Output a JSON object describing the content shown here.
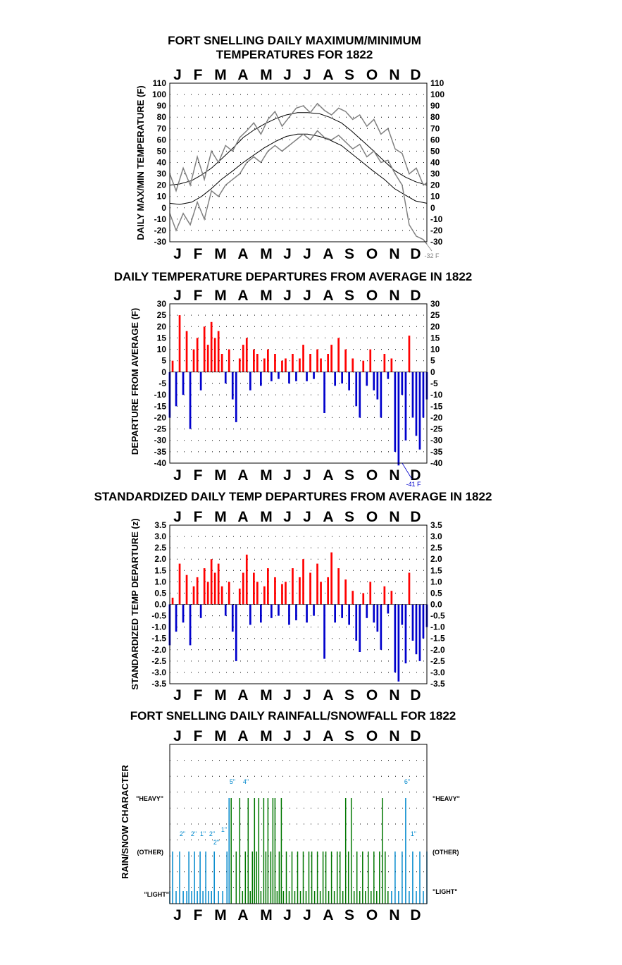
{
  "months": [
    "J",
    "F",
    "M",
    "A",
    "M",
    "J",
    "J",
    "A",
    "S",
    "O",
    "N",
    "D"
  ],
  "colors": {
    "observed": "#808080",
    "normal": "#000000",
    "warm": "#ff0000",
    "cold": "#0000cc",
    "rain": "#007700",
    "snow": "#0088cc",
    "grid": "#000000"
  },
  "chart_data": [
    {
      "type": "line",
      "title_line1": "FORT SNELLING DAILY MAXIMUM/MINIMUM",
      "title_line2": "TEMPERATURES FOR 1822",
      "ylabel": "DAILY MAX/MIN TEMPERATURE (F)",
      "ylim": [
        -30,
        110
      ],
      "yticks": [
        -30,
        -20,
        -10,
        0,
        10,
        20,
        30,
        40,
        50,
        60,
        70,
        80,
        90,
        100,
        110
      ],
      "annotation": "-32 F",
      "series": [
        {
          "role": "normal-max",
          "x": [
            1,
            15,
            32,
            46,
            60,
            74,
            91,
            105,
            121,
            135,
            152,
            166,
            182,
            196,
            213,
            227,
            244,
            258,
            274,
            288,
            305,
            319,
            335,
            349,
            365
          ],
          "values": [
            20,
            21,
            24,
            29,
            35,
            43,
            53,
            62,
            69,
            74,
            79,
            82,
            84,
            84,
            83,
            80,
            75,
            68,
            59,
            51,
            41,
            33,
            27,
            23,
            20
          ]
        },
        {
          "role": "normal-min",
          "x": [
            1,
            15,
            32,
            46,
            60,
            74,
            91,
            105,
            121,
            135,
            152,
            166,
            182,
            196,
            213,
            227,
            244,
            258,
            274,
            288,
            305,
            319,
            335,
            349,
            365
          ],
          "values": [
            4,
            3,
            5,
            10,
            17,
            25,
            33,
            40,
            47,
            53,
            59,
            63,
            65,
            65,
            63,
            60,
            55,
            48,
            40,
            33,
            25,
            17,
            11,
            6,
            4
          ]
        },
        {
          "role": "observed-max",
          "x": [
            1,
            10,
            20,
            30,
            40,
            50,
            60,
            70,
            80,
            90,
            100,
            110,
            120,
            130,
            140,
            150,
            160,
            170,
            180,
            190,
            200,
            210,
            220,
            230,
            240,
            250,
            260,
            270,
            280,
            290,
            300,
            310,
            320,
            330,
            340,
            350,
            360,
            365
          ],
          "values": [
            30,
            15,
            35,
            20,
            45,
            25,
            50,
            40,
            55,
            50,
            62,
            68,
            75,
            65,
            78,
            85,
            72,
            80,
            88,
            90,
            84,
            92,
            86,
            82,
            88,
            85,
            78,
            82,
            72,
            78,
            65,
            70,
            52,
            48,
            30,
            35,
            20,
            22
          ]
        },
        {
          "role": "observed-min",
          "x": [
            1,
            10,
            20,
            30,
            40,
            50,
            60,
            70,
            80,
            90,
            100,
            110,
            120,
            130,
            140,
            150,
            160,
            170,
            180,
            190,
            200,
            210,
            220,
            230,
            240,
            250,
            260,
            270,
            280,
            290,
            300,
            310,
            320,
            330,
            340,
            350,
            360,
            365
          ],
          "values": [
            -5,
            -20,
            -5,
            -15,
            5,
            -10,
            15,
            10,
            20,
            25,
            30,
            40,
            45,
            40,
            50,
            55,
            50,
            55,
            60,
            65,
            60,
            68,
            62,
            60,
            64,
            58,
            52,
            56,
            45,
            50,
            40,
            42,
            30,
            20,
            -15,
            -25,
            -28,
            -32
          ]
        }
      ]
    },
    {
      "type": "bar",
      "title": "DAILY TEMPERATURE DEPARTURES FROM AVERAGE IN 1822",
      "ylabel": "DEPARTURE FROM AVERAGE (F)",
      "ylim": [
        -40,
        30
      ],
      "yticks": [
        -40,
        -35,
        -30,
        -25,
        -20,
        -15,
        -10,
        -5,
        0,
        5,
        10,
        15,
        20,
        25,
        30
      ],
      "annotation": "-41 F",
      "x": [
        1,
        5,
        10,
        15,
        20,
        25,
        30,
        35,
        40,
        45,
        50,
        55,
        60,
        65,
        70,
        75,
        80,
        85,
        90,
        95,
        100,
        105,
        110,
        115,
        120,
        125,
        130,
        135,
        140,
        145,
        150,
        155,
        160,
        165,
        170,
        175,
        180,
        185,
        190,
        195,
        200,
        205,
        210,
        215,
        220,
        225,
        230,
        235,
        240,
        245,
        250,
        255,
        260,
        265,
        270,
        275,
        280,
        285,
        290,
        295,
        300,
        305,
        310,
        315,
        320,
        325,
        330,
        335,
        340,
        345,
        350,
        355,
        360,
        365
      ],
      "values": [
        -20,
        5,
        -15,
        25,
        -10,
        18,
        -25,
        10,
        15,
        -8,
        20,
        12,
        22,
        15,
        18,
        8,
        -5,
        10,
        -12,
        -22,
        6,
        12,
        15,
        -8,
        10,
        8,
        -6,
        6,
        10,
        -4,
        8,
        -3,
        5,
        6,
        -5,
        8,
        -4,
        6,
        12,
        -4,
        8,
        -3,
        10,
        6,
        -18,
        8,
        12,
        -6,
        15,
        -5,
        10,
        -8,
        6,
        -15,
        -20,
        5,
        -6,
        10,
        -8,
        -12,
        -20,
        8,
        -3,
        6,
        -35,
        -41,
        -10,
        -30,
        16,
        -20,
        -28,
        -34,
        -20,
        -12
      ]
    },
    {
      "type": "bar",
      "title": "STANDARDIZED DAILY TEMP DEPARTURES FROM AVERAGE IN 1822",
      "ylabel": "STANDARDIZED TEMP DEPARTURE (z)",
      "ylim": [
        -3.5,
        3.5
      ],
      "yticks": [
        -3.5,
        -3.0,
        -2.5,
        -2.0,
        -1.5,
        -1.0,
        -0.5,
        0.0,
        0.5,
        1.0,
        1.5,
        2.0,
        2.5,
        3.0,
        3.5
      ],
      "x": [
        1,
        5,
        10,
        15,
        20,
        25,
        30,
        35,
        40,
        45,
        50,
        55,
        60,
        65,
        70,
        75,
        80,
        85,
        90,
        95,
        100,
        105,
        110,
        115,
        120,
        125,
        130,
        135,
        140,
        145,
        150,
        155,
        160,
        165,
        170,
        175,
        180,
        185,
        190,
        195,
        200,
        205,
        210,
        215,
        220,
        225,
        230,
        235,
        240,
        245,
        250,
        255,
        260,
        265,
        270,
        275,
        280,
        285,
        290,
        295,
        300,
        305,
        310,
        315,
        320,
        325,
        330,
        335,
        340,
        345,
        350,
        355,
        360,
        365
      ],
      "values": [
        -1.8,
        0.3,
        -1.2,
        1.8,
        -0.8,
        1.3,
        -1.8,
        0.8,
        1.2,
        -0.6,
        1.6,
        1.0,
        2.0,
        1.4,
        1.8,
        0.8,
        -0.5,
        1.0,
        -1.2,
        -2.5,
        0.7,
        1.4,
        2.2,
        -0.9,
        1.4,
        1.0,
        -0.8,
        0.8,
        1.6,
        -0.6,
        1.2,
        -0.5,
        0.9,
        1.0,
        -0.9,
        1.6,
        -0.7,
        1.2,
        2.0,
        -0.8,
        1.4,
        -0.5,
        1.8,
        1.0,
        -2.4,
        1.2,
        2.3,
        -0.8,
        1.6,
        -0.6,
        1.1,
        -0.9,
        0.6,
        -1.6,
        -2.1,
        0.5,
        -0.6,
        1.0,
        -0.8,
        -1.2,
        -2.0,
        0.8,
        -0.4,
        0.6,
        -3.0,
        -3.4,
        -0.9,
        -2.6,
        1.4,
        -1.6,
        -2.2,
        -2.5,
        -1.5,
        -1.0
      ]
    },
    {
      "type": "bar",
      "title": "FORT SNELLING DAILY RAINFALL/SNOWFALL FOR 1822",
      "ylabel": "RAIN/SNOW CHARACTER",
      "categories": [
        "\"LIGHT\"",
        "(OTHER)",
        "\"HEAVY\""
      ],
      "series": [
        {
          "name": "rain",
          "x": [
            88,
            95,
            100,
            104,
            108,
            112,
            115,
            118,
            121,
            124,
            127,
            130,
            134,
            137,
            140,
            144,
            147,
            150,
            153,
            156,
            159,
            162,
            166,
            170,
            174,
            178,
            182,
            186,
            190,
            194,
            198,
            202,
            206,
            210,
            214,
            218,
            222,
            226,
            230,
            234,
            238,
            242,
            246,
            250,
            254,
            258,
            262,
            266,
            270,
            274,
            278,
            282,
            286,
            290,
            294,
            298,
            302,
            306,
            310
          ],
          "levels": [
            2,
            1,
            2,
            0,
            1,
            2,
            0,
            1,
            2,
            1,
            2,
            0,
            2,
            1,
            2,
            1,
            2,
            2,
            0,
            1,
            2,
            0,
            1,
            0,
            1,
            0,
            1,
            0,
            1,
            0,
            1,
            1,
            0,
            1,
            0,
            1,
            1,
            0,
            1,
            0,
            1,
            1,
            0,
            2,
            1,
            2,
            0,
            1,
            0,
            1,
            0,
            1,
            0,
            1,
            0,
            1,
            2,
            1,
            0
          ]
        },
        {
          "name": "snow",
          "x": [
            1,
            5,
            10,
            15,
            20,
            25,
            28,
            32,
            36,
            40,
            44,
            48,
            52,
            56,
            60,
            64,
            70,
            76,
            82,
            85,
            315,
            320,
            325,
            330,
            335,
            340,
            345,
            350,
            355,
            360,
            365
          ],
          "levels": [
            0,
            1,
            0,
            1,
            0,
            0,
            1,
            0,
            1,
            0,
            1,
            0,
            1,
            0,
            0,
            1,
            0,
            0,
            1,
            2,
            0,
            1,
            0,
            1,
            2,
            0,
            1,
            0,
            1,
            0,
            1
          ]
        }
      ],
      "annotations": [
        "2\"",
        "2\"",
        "1\"",
        "2\"",
        "1\"",
        "2\"",
        "5\"",
        "4\"",
        "6\"",
        "1\""
      ]
    }
  ]
}
